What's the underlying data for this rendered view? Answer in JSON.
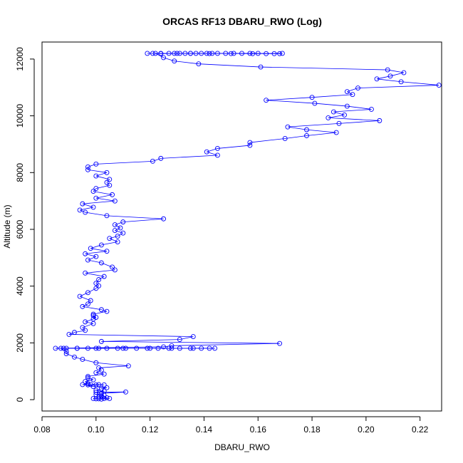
{
  "chart_data": {
    "type": "line",
    "title": "ORCAS RF13 DBARU_RWO (Log)",
    "xlabel": "DBARU_RWO",
    "ylabel": "Altitude (m)",
    "xlim": [
      0.08,
      0.228
    ],
    "ylim": [
      -400,
      12600
    ],
    "x_ticks": [
      "0.08",
      "0.10",
      "0.12",
      "0.14",
      "0.16",
      "0.18",
      "0.20",
      "0.22"
    ],
    "y_ticks": [
      "0",
      "2000",
      "4000",
      "6000",
      "8000",
      "10000",
      "12000"
    ],
    "colors": {
      "series": "#0000ff"
    },
    "series": [
      {
        "points": [
          [
            0.119,
            12200
          ],
          [
            0.121,
            12200
          ],
          [
            0.124,
            12200
          ],
          [
            0.127,
            12200
          ],
          [
            0.129,
            12200
          ],
          [
            0.131,
            12200
          ],
          [
            0.133,
            12200
          ],
          [
            0.135,
            12200
          ],
          [
            0.137,
            12200
          ],
          [
            0.139,
            12200
          ],
          [
            0.141,
            12200
          ],
          [
            0.143,
            12200
          ],
          [
            0.145,
            12200
          ],
          [
            0.148,
            12200
          ],
          [
            0.151,
            12200
          ],
          [
            0.154,
            12200
          ],
          [
            0.157,
            12200
          ],
          [
            0.16,
            12200
          ],
          [
            0.163,
            12190
          ],
          [
            0.166,
            12190
          ],
          [
            0.168,
            12190
          ],
          [
            0.169,
            12200
          ],
          [
            0.158,
            12190
          ],
          [
            0.15,
            12195
          ],
          [
            0.142,
            12195
          ],
          [
            0.135,
            12200
          ],
          [
            0.13,
            12200
          ],
          [
            0.124,
            12190
          ],
          [
            0.122,
            12200
          ],
          [
            0.125,
            12050
          ],
          [
            0.129,
            11930
          ],
          [
            0.138,
            11830
          ],
          [
            0.161,
            11720
          ],
          [
            0.208,
            11620
          ],
          [
            0.214,
            11520
          ],
          [
            0.209,
            11400
          ],
          [
            0.204,
            11300
          ],
          [
            0.213,
            11200
          ],
          [
            0.227,
            11080
          ],
          [
            0.197,
            10980
          ],
          [
            0.193,
            10850
          ],
          [
            0.195,
            10750
          ],
          [
            0.18,
            10650
          ],
          [
            0.163,
            10550
          ],
          [
            0.181,
            10440
          ],
          [
            0.193,
            10340
          ],
          [
            0.202,
            10230
          ],
          [
            0.188,
            10140
          ],
          [
            0.192,
            10030
          ],
          [
            0.186,
            9930
          ],
          [
            0.205,
            9830
          ],
          [
            0.19,
            9730
          ],
          [
            0.171,
            9610
          ],
          [
            0.178,
            9510
          ],
          [
            0.189,
            9410
          ],
          [
            0.178,
            9300
          ],
          [
            0.17,
            9200
          ],
          [
            0.157,
            9060
          ],
          [
            0.157,
            8960
          ],
          [
            0.145,
            8850
          ],
          [
            0.141,
            8730
          ],
          [
            0.145,
            8610
          ],
          [
            0.124,
            8500
          ],
          [
            0.121,
            8400
          ],
          [
            0.1,
            8300
          ],
          [
            0.097,
            8200
          ],
          [
            0.097,
            8100
          ],
          [
            0.104,
            8000
          ],
          [
            0.1,
            7880
          ],
          [
            0.105,
            7760
          ],
          [
            0.104,
            7650
          ],
          [
            0.105,
            7550
          ],
          [
            0.1,
            7440
          ],
          [
            0.099,
            7340
          ],
          [
            0.106,
            7220
          ],
          [
            0.1,
            7100
          ],
          [
            0.107,
            7000
          ],
          [
            0.095,
            6900
          ],
          [
            0.099,
            6780
          ],
          [
            0.094,
            6680
          ],
          [
            0.096,
            6600
          ],
          [
            0.104,
            6480
          ],
          [
            0.125,
            6370
          ],
          [
            0.11,
            6260
          ],
          [
            0.107,
            6160
          ],
          [
            0.109,
            6050
          ],
          [
            0.107,
            5960
          ],
          [
            0.11,
            5870
          ],
          [
            0.108,
            5760
          ],
          [
            0.105,
            5680
          ],
          [
            0.108,
            5560
          ],
          [
            0.102,
            5450
          ],
          [
            0.098,
            5330
          ],
          [
            0.104,
            5230
          ],
          [
            0.096,
            5140
          ],
          [
            0.1,
            5040
          ],
          [
            0.097,
            4920
          ],
          [
            0.102,
            4820
          ],
          [
            0.106,
            4670
          ],
          [
            0.107,
            4570
          ],
          [
            0.096,
            4460
          ],
          [
            0.103,
            4340
          ],
          [
            0.101,
            4230
          ],
          [
            0.1,
            4100
          ],
          [
            0.101,
            4010
          ],
          [
            0.1,
            3920
          ],
          [
            0.097,
            3770
          ],
          [
            0.094,
            3640
          ],
          [
            0.098,
            3490
          ],
          [
            0.097,
            3370
          ],
          [
            0.095,
            3280
          ],
          [
            0.102,
            3170
          ],
          [
            0.104,
            3110
          ],
          [
            0.099,
            3010
          ],
          [
            0.099,
            2960
          ],
          [
            0.1,
            2900
          ],
          [
            0.099,
            2840
          ],
          [
            0.096,
            2740
          ],
          [
            0.099,
            2680
          ],
          [
            0.095,
            2540
          ],
          [
            0.096,
            2440
          ],
          [
            0.092,
            2370
          ],
          [
            0.09,
            2300
          ],
          [
            0.136,
            2220
          ],
          [
            0.131,
            2120
          ],
          [
            0.102,
            2050
          ],
          [
            0.168,
            1980
          ],
          [
            0.128,
            1900
          ],
          [
            0.125,
            1860
          ],
          [
            0.085,
            1810
          ],
          [
            0.089,
            1810
          ],
          [
            0.093,
            1810
          ],
          [
            0.097,
            1810
          ],
          [
            0.101,
            1810
          ],
          [
            0.104,
            1810
          ],
          [
            0.108,
            1810
          ],
          [
            0.111,
            1810
          ],
          [
            0.115,
            1810
          ],
          [
            0.119,
            1810
          ],
          [
            0.123,
            1810
          ],
          [
            0.127,
            1810
          ],
          [
            0.131,
            1810
          ],
          [
            0.135,
            1810
          ],
          [
            0.139,
            1810
          ],
          [
            0.142,
            1810
          ],
          [
            0.144,
            1810
          ],
          [
            0.136,
            1810
          ],
          [
            0.128,
            1810
          ],
          [
            0.12,
            1810
          ],
          [
            0.11,
            1810
          ],
          [
            0.1,
            1810
          ],
          [
            0.093,
            1810
          ],
          [
            0.088,
            1810
          ],
          [
            0.087,
            1810
          ],
          [
            0.089,
            1700
          ],
          [
            0.089,
            1620
          ],
          [
            0.092,
            1500
          ],
          [
            0.095,
            1420
          ],
          [
            0.1,
            1300
          ],
          [
            0.112,
            1190
          ],
          [
            0.101,
            1120
          ],
          [
            0.102,
            1040
          ],
          [
            0.1,
            950
          ],
          [
            0.103,
            900
          ],
          [
            0.097,
            820
          ],
          [
            0.097,
            770
          ],
          [
            0.099,
            700
          ],
          [
            0.096,
            640
          ],
          [
            0.097,
            560
          ],
          [
            0.095,
            530
          ],
          [
            0.098,
            530
          ],
          [
            0.101,
            530
          ],
          [
            0.103,
            520
          ],
          [
            0.1,
            520
          ],
          [
            0.097,
            520
          ],
          [
            0.099,
            460
          ],
          [
            0.104,
            420
          ],
          [
            0.102,
            380
          ],
          [
            0.1,
            330
          ],
          [
            0.103,
            300
          ],
          [
            0.1,
            260
          ],
          [
            0.111,
            270
          ],
          [
            0.102,
            220
          ],
          [
            0.1,
            180
          ],
          [
            0.103,
            150
          ],
          [
            0.102,
            120
          ],
          [
            0.101,
            90
          ],
          [
            0.104,
            70
          ],
          [
            0.103,
            40
          ],
          [
            0.101,
            30
          ],
          [
            0.099,
            40
          ],
          [
            0.1,
            30
          ],
          [
            0.102,
            20
          ],
          [
            0.105,
            40
          ]
        ]
      }
    ]
  }
}
